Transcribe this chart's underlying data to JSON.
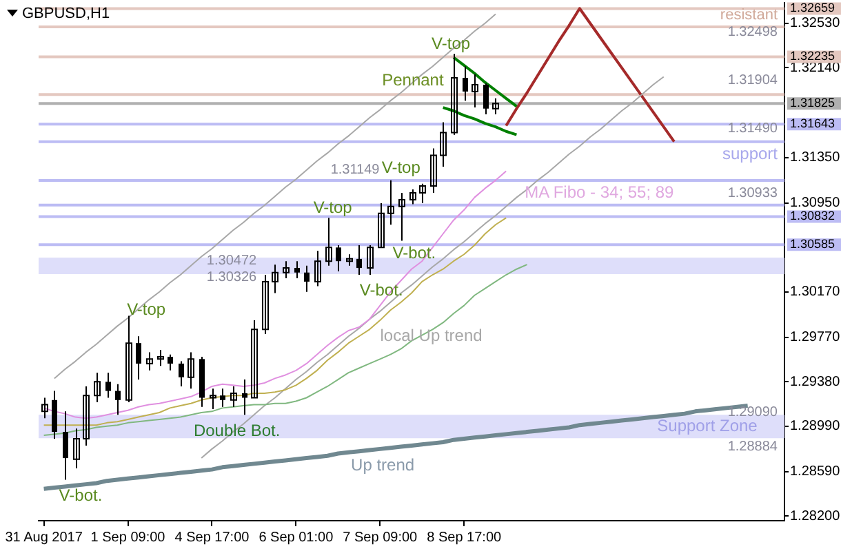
{
  "chart_data": {
    "type": "candlestick",
    "title": "GBPUSD,H1",
    "color": "#000000",
    "categories": [
      "31 Aug 2017",
      null,
      null,
      null,
      null,
      null,
      null,
      null,
      "1 Sep 09:00",
      null,
      null,
      null,
      null,
      null,
      null,
      null,
      "4 Sep 17:00",
      null,
      null,
      null,
      null,
      null,
      null,
      null,
      "6 Sep 01:00",
      null,
      null,
      null,
      null,
      null,
      null,
      null,
      "7 Sep 09:00",
      null,
      null,
      null,
      null,
      null,
      null,
      null,
      "8 Sep 17:00",
      null,
      null,
      null,
      null,
      null,
      null,
      null,
      null,
      null,
      null,
      null,
      null,
      null,
      null,
      null,
      null,
      null,
      null,
      null,
      null,
      null,
      null,
      null,
      null,
      null,
      null,
      null,
      null,
      null,
      null
    ],
    "ohlc": [
      [
        1.2912,
        1.2924,
        1.2906,
        1.2918
      ],
      [
        1.2922,
        1.293,
        1.2888,
        1.2894
      ],
      [
        1.2894,
        1.2912,
        1.2852,
        1.2871
      ],
      [
        1.287,
        1.2897,
        1.2862,
        1.2888
      ],
      [
        1.2888,
        1.2934,
        1.2882,
        1.2926
      ],
      [
        1.2926,
        1.2946,
        1.292,
        1.2938
      ],
      [
        1.2938,
        1.2946,
        1.2924,
        1.293
      ],
      [
        1.293,
        1.2936,
        1.2909,
        1.2922
      ],
      [
        1.2922,
        1.2996,
        1.292,
        1.2972
      ],
      [
        1.2972,
        1.2978,
        1.294,
        1.2954
      ],
      [
        1.2954,
        1.2964,
        1.2948,
        1.2958
      ],
      [
        1.2958,
        1.2966,
        1.2952,
        1.296
      ],
      [
        1.296,
        1.2962,
        1.2948,
        1.2954
      ],
      [
        1.2954,
        1.2956,
        1.2934,
        1.2942
      ],
      [
        1.2942,
        1.2964,
        1.2932,
        1.2958
      ],
      [
        1.2958,
        1.296,
        1.2916,
        1.2924
      ],
      [
        1.2924,
        1.2932,
        1.2914,
        1.2926
      ],
      [
        1.2926,
        1.2932,
        1.2916,
        1.2922
      ],
      [
        1.2922,
        1.2934,
        1.2916,
        1.2928
      ],
      [
        1.2928,
        1.294,
        1.2909,
        1.2924
      ],
      [
        1.2924,
        1.2992,
        1.2924,
        1.2984
      ],
      [
        1.2984,
        1.3032,
        1.298,
        1.3026
      ],
      [
        1.3026,
        1.3041,
        1.3016,
        1.3034
      ],
      [
        1.3034,
        1.3044,
        1.3029,
        1.3038
      ],
      [
        1.3038,
        1.3044,
        1.3029,
        1.3034
      ],
      [
        1.3034,
        1.304,
        1.3017,
        1.3026
      ],
      [
        1.3026,
        1.3053,
        1.3022,
        1.3044
      ],
      [
        1.3044,
        1.3082,
        1.304,
        1.3056
      ],
      [
        1.3056,
        1.3058,
        1.3035,
        1.3044
      ],
      [
        1.3044,
        1.305,
        1.304,
        1.3046
      ],
      [
        1.3046,
        1.3058,
        1.3032,
        1.3038
      ],
      [
        1.3038,
        1.3058,
        1.3032,
        1.3056
      ],
      [
        1.3056,
        1.3095,
        1.3056,
        1.3086
      ],
      [
        1.3086,
        1.3115,
        1.3076,
        1.3092
      ],
      [
        1.3092,
        1.3104,
        1.3062,
        1.3098
      ],
      [
        1.3098,
        1.3107,
        1.3094,
        1.3104
      ],
      [
        1.3104,
        1.3112,
        1.3095,
        1.311
      ],
      [
        1.311,
        1.3143,
        1.3104,
        1.3137
      ],
      [
        1.3137,
        1.3166,
        1.3127,
        1.3157
      ],
      [
        1.3157,
        1.3226,
        1.3155,
        1.3205
      ],
      [
        1.3205,
        1.3215,
        1.3185,
        1.3193
      ],
      [
        1.3193,
        1.3208,
        1.3179,
        1.3199
      ],
      [
        1.3199,
        1.32,
        1.3173,
        1.3178
      ],
      [
        1.3178,
        1.3187,
        1.3173,
        1.31825
      ],
      null,
      null,
      null,
      null,
      null,
      null,
      null,
      null,
      null,
      null,
      null,
      null,
      null,
      null,
      null,
      null,
      null,
      null,
      null,
      null,
      null,
      null,
      null,
      null,
      null,
      null,
      null
    ],
    "series": [
      {
        "type": "line",
        "color": "#e090e0",
        "values": [
          1.2915,
          1.2912,
          1.291,
          1.2907,
          1.2906,
          1.2907,
          1.2909,
          1.2911,
          1.2913,
          1.2916,
          1.2918,
          1.2919,
          1.2921,
          1.2923,
          1.2925,
          1.2929,
          1.2934,
          1.2936,
          1.2935,
          1.2934,
          1.2935,
          1.2937,
          1.2941,
          1.2944,
          1.2948,
          1.2954,
          1.2962,
          1.297,
          1.2977,
          1.2983,
          1.2986,
          1.2993,
          1.3005,
          1.3017,
          1.3027,
          1.3037,
          1.3044,
          1.3056,
          1.3068,
          1.308,
          1.3089,
          1.31,
          1.3108,
          1.3115,
          1.3123,
          null,
          null,
          null,
          null,
          null,
          null,
          null,
          null,
          null,
          null,
          null,
          null,
          null,
          null,
          null,
          null,
          null,
          null,
          null,
          null,
          null,
          null,
          null,
          null,
          null,
          null
        ]
      },
      {
        "type": "line",
        "color": "#c0b050",
        "values": [
          1.29,
          1.29,
          1.29,
          1.29,
          1.29,
          1.29,
          1.2902,
          1.2903,
          1.2905,
          1.2907,
          1.2909,
          1.2911,
          1.2915,
          1.2917,
          1.2919,
          1.2922,
          1.2924,
          1.2925,
          1.2926,
          1.2926,
          1.2928,
          1.2928,
          1.2929,
          1.2931,
          1.2935,
          1.2941,
          1.2948,
          1.2957,
          1.2964,
          1.2972,
          1.2978,
          1.2984,
          1.2992,
          1.3001,
          1.3008,
          1.3016,
          1.3026,
          1.3032,
          1.3037,
          1.3044,
          1.305,
          1.3058,
          1.3068,
          1.3076,
          1.3082,
          null,
          null,
          null,
          null,
          null,
          null,
          null,
          null,
          null,
          null,
          null,
          null,
          null,
          null,
          null,
          null,
          null,
          null,
          null,
          null,
          null,
          null,
          null,
          null,
          null,
          null
        ]
      },
      {
        "type": "line",
        "color": "#80b880",
        "values": [
          1.2891,
          1.2892,
          1.2893,
          1.2895,
          1.2896,
          1.2898,
          1.2899,
          1.29,
          1.2902,
          1.2903,
          1.2904,
          1.2905,
          1.2906,
          1.2907,
          1.2909,
          1.2911,
          1.2912,
          1.2915,
          1.2916,
          1.2917,
          1.2918,
          1.2918,
          1.2919,
          1.2919,
          1.2921,
          1.2924,
          1.2929,
          1.2934,
          1.294,
          1.2946,
          1.295,
          1.2954,
          1.2958,
          1.2962,
          1.2967,
          1.2974,
          1.2979,
          1.2984,
          1.299,
          1.2998,
          1.3005,
          1.3014,
          1.302,
          1.3026,
          1.3032,
          1.3037,
          1.3041,
          null,
          null,
          null,
          null,
          null,
          null,
          null,
          null,
          null,
          null,
          null,
          null,
          null,
          null,
          null,
          null,
          null,
          null,
          null,
          null,
          null,
          null,
          null,
          null
        ]
      },
      {
        "type": "line",
        "color": "#a8a8a8",
        "values": [
          null,
          1.2941,
          1.2949,
          1.2956,
          1.2964,
          1.2971,
          1.2979,
          1.2987,
          1.2994,
          1.3002,
          1.301,
          1.3017,
          1.3025,
          1.3032,
          1.304,
          1.3048,
          1.3055,
          1.3063,
          1.3071,
          1.3078,
          1.3086,
          1.3093,
          1.3101,
          1.3109,
          1.3116,
          1.3124,
          1.3132,
          1.3139,
          1.3147,
          1.3154,
          1.3162,
          1.317,
          1.3177,
          1.3185,
          1.3192,
          1.32,
          1.3208,
          1.3215,
          1.3223,
          1.3231,
          1.3238,
          1.3246,
          1.3253,
          1.3261,
          null,
          null,
          null,
          null,
          null,
          null,
          null,
          null,
          null,
          null,
          null,
          null,
          null,
          null,
          null,
          null,
          null,
          null,
          null,
          null,
          null,
          null,
          null,
          null,
          null,
          null,
          null
        ]
      },
      {
        "type": "line",
        "color": "#a8a8a8",
        "values": [
          null,
          null,
          null,
          null,
          null,
          null,
          null,
          null,
          null,
          null,
          null,
          null,
          null,
          null,
          null,
          1.2871,
          1.2879,
          1.2886,
          1.2894,
          1.2901,
          1.2909,
          1.2917,
          1.2924,
          1.2932,
          1.294,
          1.2947,
          1.2955,
          1.2962,
          1.297,
          1.2978,
          1.2985,
          1.2993,
          1.3,
          1.3008,
          1.3016,
          1.3023,
          1.3031,
          1.3039,
          1.3046,
          1.3054,
          1.3061,
          1.3069,
          1.3077,
          1.3084,
          1.3092,
          1.31,
          1.3107,
          1.3115,
          1.3122,
          1.313,
          1.3138,
          1.3145,
          1.3153,
          1.316,
          1.3168,
          1.3176,
          1.3183,
          1.3191,
          1.3199,
          1.3206,
          null,
          null,
          null,
          null,
          null,
          null,
          null,
          null,
          null,
          null,
          null
        ]
      },
      {
        "type": "line",
        "color": "#708890",
        "values": [
          1.2844,
          1.2845,
          1.2846,
          1.2847,
          1.2848,
          1.2849,
          1.2851,
          1.2852,
          1.2853,
          1.2854,
          1.2855,
          1.2856,
          1.2857,
          1.2858,
          1.2859,
          1.286,
          1.2861,
          1.2863,
          1.2864,
          1.2865,
          1.2866,
          1.2867,
          1.2868,
          1.2869,
          1.287,
          1.2871,
          1.2872,
          1.2873,
          1.2875,
          1.2876,
          1.2877,
          1.2878,
          1.2879,
          1.288,
          1.2881,
          1.2882,
          1.2883,
          1.2884,
          1.2885,
          1.2887,
          1.2888,
          1.2889,
          1.289,
          1.2891,
          1.2892,
          1.2893,
          1.2894,
          1.2895,
          1.2896,
          1.2897,
          1.2898,
          1.29,
          1.2901,
          1.2902,
          1.2903,
          1.2904,
          1.2905,
          1.2906,
          1.2907,
          1.2908,
          1.2909,
          1.291,
          1.2912,
          1.2913,
          1.2914,
          1.2915,
          1.2916,
          1.2917,
          null,
          null,
          null
        ]
      },
      {
        "type": "line",
        "color": "#008000",
        "values": [
          null,
          null,
          null,
          null,
          null,
          null,
          null,
          null,
          null,
          null,
          null,
          null,
          null,
          null,
          null,
          null,
          null,
          null,
          null,
          null,
          null,
          null,
          null,
          null,
          null,
          null,
          null,
          null,
          null,
          null,
          null,
          null,
          null,
          null,
          null,
          null,
          null,
          null,
          null,
          1.3223,
          1.3216,
          1.3209,
          1.3201,
          1.3194,
          1.3187,
          1.318,
          null,
          null,
          null,
          null,
          null,
          null,
          null,
          null,
          null,
          null,
          null,
          null,
          null,
          null,
          null,
          null,
          null,
          null,
          null,
          null,
          null,
          null,
          null,
          null,
          null
        ]
      },
      {
        "type": "line",
        "color": "#008000",
        "values": [
          null,
          null,
          null,
          null,
          null,
          null,
          null,
          null,
          null,
          null,
          null,
          null,
          null,
          null,
          null,
          null,
          null,
          null,
          null,
          null,
          null,
          null,
          null,
          null,
          null,
          null,
          null,
          null,
          null,
          null,
          null,
          null,
          null,
          null,
          null,
          null,
          null,
          null,
          1.3179,
          1.3176,
          1.3172,
          1.3169,
          1.3165,
          1.3162,
          1.3158,
          1.3155,
          null,
          null,
          null,
          null,
          null,
          null,
          null,
          null,
          null,
          null,
          null,
          null,
          null,
          null,
          null,
          null,
          null,
          null,
          null,
          null,
          null,
          null,
          null,
          null,
          null
        ]
      },
      {
        "type": "line",
        "color": "#a52a2a",
        "values": [
          null,
          null,
          null,
          null,
          null,
          null,
          null,
          null,
          null,
          null,
          null,
          null,
          null,
          null,
          null,
          null,
          null,
          null,
          null,
          null,
          null,
          null,
          null,
          null,
          null,
          null,
          null,
          null,
          null,
          null,
          null,
          null,
          null,
          null,
          null,
          null,
          null,
          null,
          null,
          null,
          null,
          null,
          null,
          null,
          1.3163,
          1.3178,
          1.3192,
          1.3207,
          1.3222,
          1.3237,
          1.3251,
          1.3266,
          1.3253,
          1.324,
          1.3227,
          1.3214,
          1.3201,
          1.3188,
          1.3175,
          1.3162,
          1.3149,
          null,
          null,
          null,
          null,
          null,
          null,
          null,
          null,
          null,
          null
        ]
      }
    ],
    "ylim": [
      1.2816,
      1.3271
    ],
    "yticks": [
      {
        "value": 1.282,
        "label": "1.28200"
      },
      {
        "value": 1.2859,
        "label": "1.28590"
      },
      {
        "value": 1.2899,
        "label": "1.28990"
      },
      {
        "value": 1.2938,
        "label": "1.29380"
      },
      {
        "value": 1.2977,
        "label": "1.29770"
      },
      {
        "value": 1.3017,
        "label": "1.30170"
      },
      {
        "value": 1.3095,
        "label": "1.30950"
      },
      {
        "value": 1.3135,
        "label": "1.31350"
      },
      {
        "value": 1.3214,
        "label": "1.32140"
      },
      {
        "value": 1.3253,
        "label": "1.32530"
      }
    ],
    "ref_lines": [
      {
        "axis": "y",
        "value": 1.32659,
        "label": "1.32659",
        "color": "#e4c8c0"
      },
      {
        "axis": "y",
        "value": 1.32498,
        "color": "#e4c8c0"
      },
      {
        "axis": "y",
        "value": 1.32235,
        "label": "1.32235",
        "color": "#e4c8c0"
      },
      {
        "axis": "y",
        "value": 1.31904,
        "color": "#e4c8c0"
      },
      {
        "axis": "y",
        "value": 1.31825,
        "label": "1.31825",
        "color": "#b0b0b0"
      },
      {
        "axis": "y",
        "value": 1.31643,
        "label": "1.31643",
        "color": "#bcbcf4"
      },
      {
        "axis": "y",
        "value": 1.3149,
        "color": "#bcbcf4"
      },
      {
        "axis": "y",
        "value": 1.31149,
        "color": "#bcbcf4"
      },
      {
        "axis": "y",
        "value": 1.30933,
        "color": "#bcbcf4"
      },
      {
        "axis": "y",
        "value": 1.30832,
        "label": "1.30832",
        "color": "#bcbcf4"
      },
      {
        "axis": "y",
        "value": 1.30585,
        "label": "1.30585",
        "color": "#bcbcf4"
      }
    ],
    "bands": [
      {
        "axis": "y",
        "from": 1.30326,
        "to": 1.30472,
        "color": "#dedefa"
      },
      {
        "axis": "y",
        "from": 1.28884,
        "to": 1.2909,
        "label": "Support Zone",
        "color": "#dedefa"
      }
    ],
    "annotations": [
      "V-top",
      "V-bot.",
      "Double Bot.",
      "V-top",
      "V-bot.",
      "V-top",
      "V-bot.",
      "V-top",
      {
        "text": "Pennant",
        "y": 1.3223
      },
      "1.31149",
      "local Up trend",
      "Up trend",
      "MA Fibo - 34; 55; 89",
      "resistant",
      "support",
      "1.32498",
      "1.31904",
      "1.31490",
      "1.30933",
      "1.30472",
      "1.30326",
      "1.29090",
      "1.28884"
    ]
  }
}
